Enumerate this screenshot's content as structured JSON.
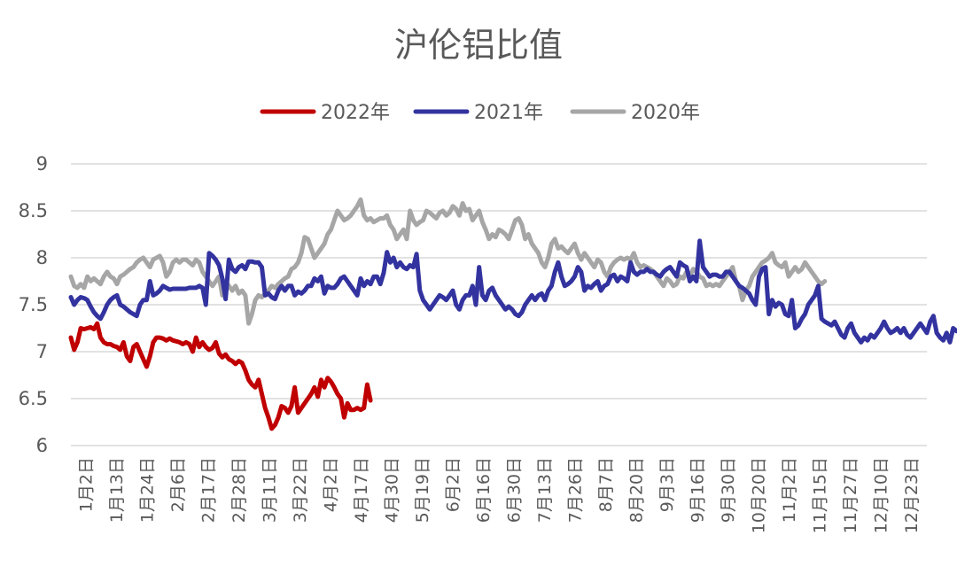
{
  "chart_data": {
    "type": "line",
    "title": "沪伦铝比值",
    "ylim": [
      6,
      9
    ],
    "yticks": [
      "6",
      "6.5",
      "7",
      "7.5",
      "8",
      "8.5",
      "9"
    ],
    "grid": true,
    "legend_position": "top",
    "x_tick_labels": [
      "1月2日",
      "1月13日",
      "1月24日",
      "2月6日",
      "2月17日",
      "2月28日",
      "3月11日",
      "3月22日",
      "4月2日",
      "4月17日",
      "4月30日",
      "5月19日",
      "6月2日",
      "6月16日",
      "6月30日",
      "7月13日",
      "7月26日",
      "8月7日",
      "8月20日",
      "9月3日",
      "9月16日",
      "9月30日",
      "10月20日",
      "11月2日",
      "11月15日",
      "11月27日",
      "12月10日",
      "12月23日"
    ],
    "series": [
      {
        "name": "2022年",
        "color": "#c00000",
        "values": [
          7.15,
          7.02,
          7.1,
          7.25,
          7.24,
          7.25,
          7.26,
          7.24,
          7.3,
          7.15,
          7.1,
          7.08,
          7.08,
          7.06,
          7.05,
          7.02,
          7.1,
          6.95,
          6.9,
          7.05,
          7.08,
          7.0,
          6.92,
          6.84,
          6.95,
          7.1,
          7.15,
          7.15,
          7.14,
          7.12,
          7.14,
          7.12,
          7.11,
          7.1,
          7.08,
          7.1,
          7.08,
          7.0,
          7.15,
          7.05,
          7.1,
          7.05,
          7.02,
          7.04,
          7.1,
          6.98,
          6.94,
          6.97,
          6.92,
          6.9,
          6.87,
          6.9,
          6.88,
          6.8,
          6.7,
          6.65,
          6.62,
          6.7,
          6.55,
          6.4,
          6.3,
          6.18,
          6.22,
          6.3,
          6.42,
          6.4,
          6.35,
          6.42,
          6.62,
          6.35,
          6.4,
          6.45,
          6.5,
          6.55,
          6.62,
          6.52,
          6.7,
          6.62,
          6.72,
          6.68,
          6.62,
          6.55,
          6.5,
          6.3,
          6.45,
          6.38,
          6.38,
          6.4,
          6.38,
          6.4,
          6.65,
          6.48
        ]
      },
      {
        "name": "2021年",
        "color": "#3333a0",
        "values": [
          7.58,
          7.5,
          7.55,
          7.58,
          7.57,
          7.55,
          7.48,
          7.42,
          7.38,
          7.35,
          7.42,
          7.5,
          7.55,
          7.58,
          7.6,
          7.5,
          7.48,
          7.45,
          7.42,
          7.4,
          7.38,
          7.5,
          7.55,
          7.55,
          7.75,
          7.6,
          7.62,
          7.65,
          7.7,
          7.68,
          7.66,
          7.67,
          7.67,
          7.67,
          7.67,
          7.67,
          7.68,
          7.68,
          7.68,
          7.7,
          7.68,
          7.5,
          8.05,
          8.02,
          7.98,
          7.92,
          7.78,
          7.56,
          7.98,
          7.88,
          7.85,
          7.9,
          7.92,
          7.88,
          7.96,
          7.96,
          7.95,
          7.95,
          7.9,
          7.6,
          7.62,
          7.58,
          7.56,
          7.65,
          7.7,
          7.65,
          7.7,
          7.7,
          7.6,
          7.64,
          7.62,
          7.65,
          7.7,
          7.7,
          7.78,
          7.75,
          7.8,
          7.62,
          7.7,
          7.68,
          7.68,
          7.72,
          7.78,
          7.8,
          7.75,
          7.7,
          7.65,
          7.6,
          7.78,
          7.7,
          7.75,
          7.72,
          7.8,
          7.8,
          7.72,
          7.84,
          8.06,
          7.95,
          8.0,
          7.9,
          7.95,
          7.9,
          7.88,
          7.92,
          7.9,
          8.04,
          7.65,
          7.55,
          7.5,
          7.45,
          7.5,
          7.55,
          7.6,
          7.58,
          7.55,
          7.6,
          7.65,
          7.5,
          7.45,
          7.55,
          7.6,
          7.6,
          7.7,
          7.5,
          7.9,
          7.6,
          7.55,
          7.65,
          7.68,
          7.6,
          7.55,
          7.5,
          7.45,
          7.48,
          7.45,
          7.4,
          7.38,
          7.42,
          7.5,
          7.55,
          7.6,
          7.55,
          7.6,
          7.62,
          7.55,
          7.65,
          7.7,
          7.85,
          7.95,
          7.8,
          7.7,
          7.72,
          7.75,
          7.8,
          7.9,
          7.85,
          7.65,
          7.7,
          7.68,
          7.72,
          7.75,
          7.65,
          7.7,
          7.72,
          7.8,
          7.82,
          7.75,
          7.8,
          7.78,
          7.75,
          7.95,
          7.85,
          7.82,
          7.85,
          7.85,
          7.88,
          7.85,
          7.85,
          7.82,
          7.8,
          7.85,
          7.88,
          7.9,
          7.85,
          7.8,
          7.95,
          7.92,
          7.9,
          7.75,
          7.8,
          7.75,
          8.18,
          7.9,
          7.85,
          7.8,
          7.82,
          7.82,
          7.8,
          7.8,
          7.85,
          7.85,
          7.8,
          7.75,
          7.7,
          7.68,
          7.65,
          7.62,
          7.55,
          7.5,
          7.8,
          7.88,
          7.9,
          7.4,
          7.55,
          7.48,
          7.52,
          7.5,
          7.4,
          7.38,
          7.55,
          7.25,
          7.28,
          7.35,
          7.4,
          7.5,
          7.55,
          7.6,
          7.7,
          7.35,
          7.32,
          7.3,
          7.28,
          7.32,
          7.25,
          7.18,
          7.15,
          7.25,
          7.3,
          7.2,
          7.15,
          7.1,
          7.15,
          7.12,
          7.18,
          7.15,
          7.2,
          7.25,
          7.32,
          7.25,
          7.2,
          7.22,
          7.25,
          7.2,
          7.25,
          7.18,
          7.15,
          7.2,
          7.25,
          7.3,
          7.25,
          7.2,
          7.32,
          7.38,
          7.2,
          7.15,
          7.12,
          7.2,
          7.1,
          7.25,
          7.22
        ]
      },
      {
        "name": "2020年",
        "color": "#a6a6a6",
        "values": [
          7.8,
          7.7,
          7.68,
          7.72,
          7.68,
          7.8,
          7.75,
          7.78,
          7.75,
          7.72,
          7.8,
          7.85,
          7.8,
          7.78,
          7.72,
          7.8,
          7.82,
          7.85,
          7.88,
          7.9,
          7.95,
          7.98,
          8.0,
          7.95,
          7.9,
          7.98,
          8.0,
          8.02,
          7.95,
          7.8,
          7.85,
          7.95,
          7.98,
          7.95,
          7.98,
          7.98,
          7.95,
          7.92,
          7.98,
          7.95,
          7.85,
          7.8,
          7.75,
          7.7,
          7.75,
          7.8,
          7.6,
          7.75,
          7.7,
          7.65,
          7.7,
          7.62,
          7.65,
          7.6,
          7.3,
          7.4,
          7.55,
          7.6,
          7.58,
          7.62,
          7.65,
          7.7,
          7.68,
          7.72,
          7.75,
          7.78,
          7.8,
          7.88,
          7.9,
          7.95,
          8.05,
          8.22,
          8.2,
          8.1,
          8.0,
          8.05,
          8.1,
          8.15,
          8.25,
          8.3,
          8.4,
          8.5,
          8.45,
          8.4,
          8.42,
          8.45,
          8.5,
          8.55,
          8.62,
          8.45,
          8.4,
          8.42,
          8.38,
          8.4,
          8.42,
          8.42,
          8.45,
          8.35,
          8.3,
          8.2,
          8.25,
          8.3,
          8.2,
          8.5,
          8.4,
          8.35,
          8.38,
          8.4,
          8.5,
          8.48,
          8.45,
          8.42,
          8.48,
          8.5,
          8.45,
          8.48,
          8.55,
          8.52,
          8.45,
          8.58,
          8.5,
          8.52,
          8.4,
          8.45,
          8.5,
          8.38,
          8.3,
          8.2,
          8.25,
          8.22,
          8.3,
          8.28,
          8.25,
          8.2,
          8.3,
          8.4,
          8.42,
          8.35,
          8.2,
          8.25,
          8.15,
          8.1,
          8.05,
          7.95,
          7.9,
          8.0,
          8.15,
          8.2,
          8.1,
          8.12,
          8.08,
          8.05,
          8.1,
          8.15,
          8.05,
          7.98,
          8.05,
          8.0,
          7.95,
          7.9,
          7.98,
          7.95,
          7.85,
          7.8,
          7.9,
          7.95,
          7.98,
          8.0,
          7.98,
          8.0,
          7.98,
          8.05,
          7.95,
          7.9,
          7.92,
          7.9,
          7.88,
          7.85,
          7.8,
          7.75,
          7.7,
          7.78,
          7.75,
          7.7,
          7.72,
          7.8,
          7.78,
          7.85,
          7.8,
          7.88,
          7.85,
          7.8,
          7.78,
          7.7,
          7.72,
          7.7,
          7.72,
          7.7,
          7.75,
          7.8,
          7.85,
          7.9,
          7.75,
          7.7,
          7.55,
          7.65,
          7.7,
          7.8,
          7.85,
          7.9,
          7.95,
          7.97,
          8.0,
          8.05,
          7.95,
          7.92,
          7.9,
          7.95,
          7.8,
          7.85,
          7.9,
          7.85,
          7.88,
          7.95,
          7.9,
          7.85,
          7.8,
          7.75,
          7.72,
          7.75
        ]
      }
    ]
  }
}
